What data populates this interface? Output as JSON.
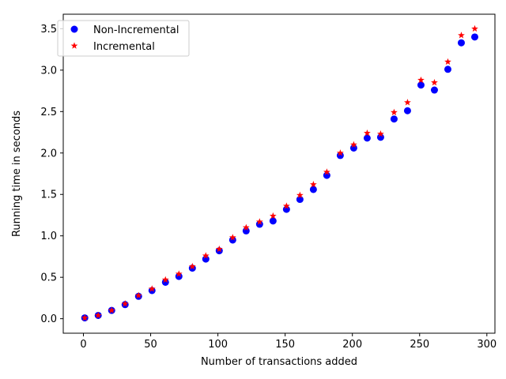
{
  "chart_data": {
    "type": "scatter",
    "title": "",
    "xlabel": "Number of transactions added",
    "ylabel": "Running time in seconds",
    "xlim": [
      -15,
      306
    ],
    "ylim": [
      -0.175,
      3.675
    ],
    "xticks": [
      0,
      50,
      100,
      150,
      200,
      250,
      300
    ],
    "yticks": [
      0.0,
      0.5,
      1.0,
      1.5,
      2.0,
      2.5,
      3.0,
      3.5
    ],
    "grid": false,
    "legend_position": "top-left",
    "x": [
      1,
      11,
      21,
      31,
      41,
      51,
      61,
      71,
      81,
      91,
      101,
      111,
      121,
      131,
      141,
      151,
      161,
      171,
      181,
      191,
      201,
      211,
      221,
      231,
      241,
      251,
      261,
      271,
      281,
      291
    ],
    "series": [
      {
        "name": "Non-Incremental",
        "marker": "circle",
        "color": "#0000ff",
        "values": [
          0.01,
          0.04,
          0.1,
          0.17,
          0.27,
          0.34,
          0.44,
          0.51,
          0.61,
          0.72,
          0.82,
          0.95,
          1.06,
          1.14,
          1.18,
          1.32,
          1.44,
          1.56,
          1.73,
          1.97,
          2.06,
          2.18,
          2.19,
          2.41,
          2.51,
          2.82,
          2.76,
          3.01,
          3.33,
          3.4
        ]
      },
      {
        "name": "Incremental",
        "marker": "star",
        "color": "#ff0000",
        "values": [
          0.01,
          0.04,
          0.1,
          0.18,
          0.28,
          0.36,
          0.47,
          0.54,
          0.63,
          0.76,
          0.84,
          0.98,
          1.1,
          1.17,
          1.24,
          1.36,
          1.49,
          1.62,
          1.77,
          2.0,
          2.1,
          2.24,
          2.23,
          2.49,
          2.61,
          2.88,
          2.85,
          3.1,
          3.42,
          3.5
        ]
      }
    ]
  }
}
